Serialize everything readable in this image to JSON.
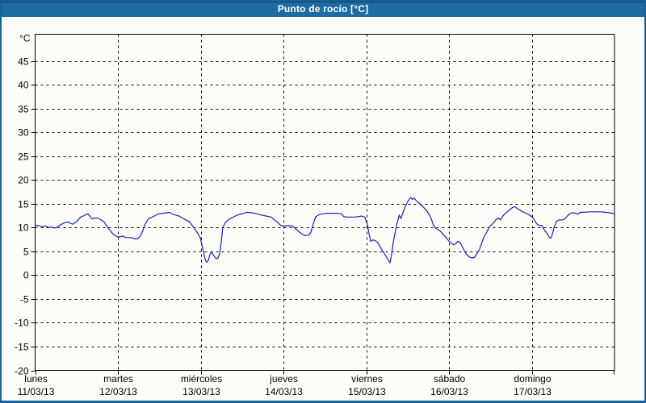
{
  "window": {
    "title": "Punto de rocío [°C]"
  },
  "colors": {
    "titlebar_bg": "#1e6ba3",
    "titlebar_text": "#ffffff",
    "frame_border": "#1a5f97",
    "panel_bg": "#fdfdf8",
    "plot_border": "#000000",
    "grid": "#000000",
    "label": "#000000",
    "series": "#1f1fb4"
  },
  "chart_data": {
    "type": "line",
    "title": "Punto de rocío [°C]",
    "ylabel": "°C",
    "xlabel": "",
    "ylim": [
      -20.0,
      50.6
    ],
    "y_ticks": [
      45,
      40,
      35,
      30,
      25,
      20,
      15,
      10,
      5,
      0,
      -5,
      -10,
      -15,
      -20
    ],
    "grid": "dashed",
    "legend_position": "none",
    "x_axis": {
      "unit": "hours_from_monday_00",
      "range": [
        0,
        168
      ],
      "day_ticks": [
        {
          "hour": 0,
          "name": "lunes",
          "date": "11/03/13"
        },
        {
          "hour": 24,
          "name": "martes",
          "date": "12/03/13"
        },
        {
          "hour": 48,
          "name": "miércoles",
          "date": "13/03/13"
        },
        {
          "hour": 72,
          "name": "jueves",
          "date": "14/03/13"
        },
        {
          "hour": 96,
          "name": "viernes",
          "date": "15/03/13"
        },
        {
          "hour": 120,
          "name": "sábado",
          "date": "16/03/13"
        },
        {
          "hour": 144,
          "name": "domingo",
          "date": "17/03/13"
        }
      ]
    },
    "series": [
      {
        "name": "Punto de rocío",
        "color": "#1f1fb4",
        "points": [
          [
            0,
            10.5
          ],
          [
            1.1,
            10.4
          ],
          [
            2.2,
            10.2
          ],
          [
            3.2,
            10.3
          ],
          [
            3.9,
            10.0
          ],
          [
            4.8,
            10.1
          ],
          [
            5.5,
            9.9
          ],
          [
            6.2,
            10.0
          ],
          [
            7.4,
            10.6
          ],
          [
            8.5,
            11.0
          ],
          [
            9.5,
            11.2
          ],
          [
            10.2,
            10.9
          ],
          [
            10.9,
            10.7
          ],
          [
            12.1,
            11.3
          ],
          [
            13.2,
            12.2
          ],
          [
            13.9,
            12.4
          ],
          [
            14.6,
            12.7
          ],
          [
            15.3,
            12.9
          ],
          [
            16.0,
            12.3
          ],
          [
            16.5,
            11.8
          ],
          [
            17.2,
            12.0
          ],
          [
            18.1,
            12.0
          ],
          [
            19.1,
            11.6
          ],
          [
            20.0,
            11.2
          ],
          [
            20.7,
            10.4
          ],
          [
            21.4,
            9.7
          ],
          [
            22.4,
            8.8
          ],
          [
            23.1,
            8.3
          ],
          [
            23.8,
            8.1
          ],
          [
            24.5,
            8.0
          ],
          [
            25.4,
            8.2
          ],
          [
            26.3,
            7.9
          ],
          [
            27.3,
            7.9
          ],
          [
            28.2,
            7.8
          ],
          [
            29.1,
            7.6
          ],
          [
            29.8,
            7.7
          ],
          [
            30.5,
            8.2
          ],
          [
            31.2,
            9.3
          ],
          [
            31.9,
            10.7
          ],
          [
            32.7,
            11.7
          ],
          [
            33.6,
            12.1
          ],
          [
            34.8,
            12.5
          ],
          [
            35.9,
            12.9
          ],
          [
            37.1,
            13.0
          ],
          [
            38.3,
            13.1
          ],
          [
            39.0,
            13.2
          ],
          [
            39.9,
            12.8
          ],
          [
            40.8,
            12.6
          ],
          [
            41.8,
            12.4
          ],
          [
            42.7,
            12.0
          ],
          [
            43.7,
            11.6
          ],
          [
            44.6,
            11.3
          ],
          [
            45.5,
            10.5
          ],
          [
            46.5,
            9.5
          ],
          [
            47.2,
            8.7
          ],
          [
            47.9,
            7.8
          ],
          [
            48.3,
            6.5
          ],
          [
            48.8,
            5.0
          ],
          [
            49.3,
            3.3
          ],
          [
            49.7,
            2.7
          ],
          [
            50.2,
            3.1
          ],
          [
            50.7,
            4.3
          ],
          [
            51.1,
            4.9
          ],
          [
            51.6,
            4.4
          ],
          [
            52.1,
            3.8
          ],
          [
            52.6,
            3.4
          ],
          [
            53.0,
            3.6
          ],
          [
            53.5,
            4.5
          ],
          [
            54.0,
            7.0
          ],
          [
            54.4,
            9.9
          ],
          [
            55.1,
            11.0
          ],
          [
            56.1,
            11.7
          ],
          [
            57.2,
            12.1
          ],
          [
            58.6,
            12.6
          ],
          [
            60.0,
            12.9
          ],
          [
            61.4,
            13.2
          ],
          [
            62.9,
            13.1
          ],
          [
            64.3,
            12.9
          ],
          [
            65.7,
            12.6
          ],
          [
            67.1,
            12.4
          ],
          [
            68.5,
            12.2
          ],
          [
            69.4,
            11.6
          ],
          [
            70.3,
            11.1
          ],
          [
            71.3,
            10.4
          ],
          [
            72.2,
            10.3
          ],
          [
            73.4,
            10.4
          ],
          [
            74.6,
            10.3
          ],
          [
            75.5,
            9.8
          ],
          [
            76.4,
            9.2
          ],
          [
            77.4,
            8.6
          ],
          [
            78.3,
            8.3
          ],
          [
            79.2,
            8.4
          ],
          [
            79.9,
            8.9
          ],
          [
            80.6,
            10.6
          ],
          [
            81.3,
            12.2
          ],
          [
            82.3,
            12.7
          ],
          [
            83.4,
            12.9
          ],
          [
            84.9,
            13.0
          ],
          [
            86.3,
            13.0
          ],
          [
            87.7,
            13.0
          ],
          [
            88.8,
            12.9
          ],
          [
            89.5,
            12.3
          ],
          [
            90.5,
            12.2
          ],
          [
            91.6,
            12.2
          ],
          [
            92.8,
            12.2
          ],
          [
            93.7,
            12.3
          ],
          [
            94.7,
            12.4
          ],
          [
            95.6,
            12.2
          ],
          [
            96.3,
            10.8
          ],
          [
            96.8,
            8.8
          ],
          [
            97.3,
            7.1
          ],
          [
            98.0,
            7.4
          ],
          [
            98.7,
            7.2
          ],
          [
            99.4,
            6.8
          ],
          [
            100.3,
            5.6
          ],
          [
            101.2,
            4.6
          ],
          [
            102.2,
            3.4
          ],
          [
            102.9,
            2.6
          ],
          [
            103.3,
            4.0
          ],
          [
            103.8,
            6.6
          ],
          [
            104.2,
            8.2
          ],
          [
            104.7,
            10.2
          ],
          [
            105.2,
            11.6
          ],
          [
            105.6,
            12.6
          ],
          [
            106.1,
            11.9
          ],
          [
            106.6,
            13.0
          ],
          [
            107.3,
            14.4
          ],
          [
            108.0,
            15.4
          ],
          [
            108.5,
            16.0
          ],
          [
            108.9,
            16.3
          ],
          [
            109.4,
            15.9
          ],
          [
            109.9,
            16.2
          ],
          [
            110.3,
            15.8
          ],
          [
            111.0,
            15.3
          ],
          [
            111.7,
            14.9
          ],
          [
            112.4,
            14.4
          ],
          [
            113.1,
            13.9
          ],
          [
            113.8,
            13.3
          ],
          [
            114.5,
            12.4
          ],
          [
            115.0,
            11.6
          ],
          [
            115.5,
            10.5
          ],
          [
            116.2,
            9.8
          ],
          [
            117.1,
            9.5
          ],
          [
            117.8,
            9.0
          ],
          [
            118.5,
            8.4
          ],
          [
            119.2,
            7.9
          ],
          [
            119.9,
            7.2
          ],
          [
            120.6,
            6.8
          ],
          [
            121.3,
            6.4
          ],
          [
            122.0,
            6.6
          ],
          [
            122.5,
            7.1
          ],
          [
            123.2,
            6.9
          ],
          [
            123.9,
            5.9
          ],
          [
            124.6,
            4.9
          ],
          [
            125.3,
            4.2
          ],
          [
            126.0,
            3.8
          ],
          [
            126.7,
            3.6
          ],
          [
            127.4,
            3.7
          ],
          [
            128.1,
            4.5
          ],
          [
            128.8,
            5.3
          ],
          [
            129.5,
            6.8
          ],
          [
            130.2,
            8.1
          ],
          [
            130.9,
            9.0
          ],
          [
            131.8,
            10.2
          ],
          [
            132.8,
            10.9
          ],
          [
            133.7,
            11.7
          ],
          [
            134.4,
            12.0
          ],
          [
            134.9,
            11.6
          ],
          [
            135.6,
            12.4
          ],
          [
            136.5,
            13.1
          ],
          [
            137.4,
            13.6
          ],
          [
            138.4,
            14.2
          ],
          [
            139.1,
            14.4
          ],
          [
            139.8,
            14.0
          ],
          [
            140.5,
            13.7
          ],
          [
            141.4,
            13.3
          ],
          [
            142.4,
            13.0
          ],
          [
            143.3,
            12.6
          ],
          [
            144.0,
            12.3
          ],
          [
            144.7,
            11.7
          ],
          [
            145.4,
            10.8
          ],
          [
            146.1,
            10.5
          ],
          [
            147.0,
            10.4
          ],
          [
            147.7,
            9.4
          ],
          [
            148.4,
            8.8
          ],
          [
            149.1,
            7.9
          ],
          [
            149.6,
            7.8
          ],
          [
            150.1,
            8.9
          ],
          [
            150.5,
            10.1
          ],
          [
            151.2,
            11.3
          ],
          [
            151.9,
            11.6
          ],
          [
            152.9,
            11.6
          ],
          [
            153.6,
            11.8
          ],
          [
            154.3,
            12.4
          ],
          [
            155.0,
            12.9
          ],
          [
            155.7,
            13.1
          ],
          [
            156.7,
            13.0
          ],
          [
            157.4,
            12.8
          ],
          [
            158.1,
            13.2
          ],
          [
            159.2,
            13.2
          ],
          [
            160.7,
            13.3
          ],
          [
            162.3,
            13.3
          ],
          [
            163.9,
            13.3
          ],
          [
            165.3,
            13.2
          ],
          [
            166.5,
            13.1
          ],
          [
            167.4,
            13.0
          ],
          [
            167.9,
            12.9
          ]
        ]
      }
    ]
  }
}
